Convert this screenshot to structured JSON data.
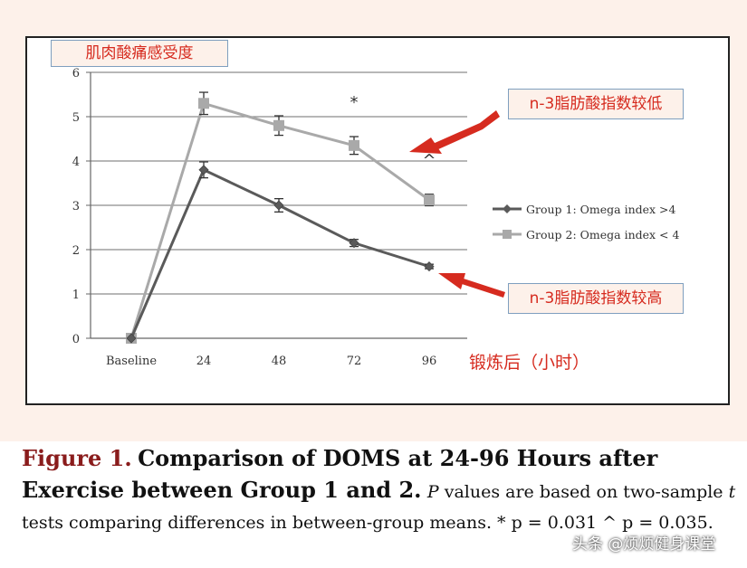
{
  "chart_data": {
    "type": "line",
    "categories": [
      "Baseline",
      "24",
      "48",
      "72",
      "96"
    ],
    "ylim": [
      0,
      6
    ],
    "yticks": [
      "0",
      "1",
      "2",
      "3",
      "4",
      "5",
      "6"
    ],
    "ylabel": "肌肉酸痛感受度",
    "xlabel": "锻炼后（小时）",
    "grid": true,
    "legend_position": "right",
    "series": [
      {
        "name": "Group 1: Omega index >4",
        "values": [
          0,
          3.8,
          3.0,
          2.15,
          1.62
        ],
        "errors": [
          0,
          0.18,
          0.15,
          0.08,
          0.05
        ],
        "color": "#5a5a5a",
        "marker": "diamond"
      },
      {
        "name": "Group 2: Omega index < 4",
        "values": [
          0,
          5.3,
          4.8,
          4.35,
          3.12
        ],
        "errors": [
          0,
          0.25,
          0.22,
          0.2,
          0.13
        ],
        "color": "#a9a9a9",
        "marker": "square"
      }
    ],
    "annotations": [
      {
        "category": "72",
        "text": "*"
      },
      {
        "category": "96",
        "text": "^"
      }
    ]
  },
  "callouts": {
    "low_omega": "n-3脂肪酸指数较低",
    "high_omega": "n-3脂肪酸指数较高"
  },
  "colors": {
    "accent_red": "#d62b1f",
    "figure_label": "#8a1c1c"
  },
  "caption": {
    "figure_label": "Figure 1.",
    "title": "Comparison of DOMS at 24-96 Hours after Exercise between Group 1 and 2.",
    "p_symbol": "P",
    "text_1": " values are based on two-sample ",
    "t_symbol": "t",
    "text_2": " tests comparing differences in between-group means. * p = 0.031   ^ p = 0.035."
  },
  "watermark": "头条 @烦烦健身课堂"
}
